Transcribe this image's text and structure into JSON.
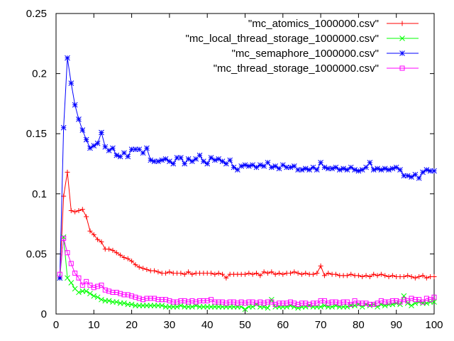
{
  "chart_data": {
    "type": "line",
    "title": "",
    "xlabel": "",
    "ylabel": "",
    "xlim": [
      0,
      100
    ],
    "ylim": [
      0,
      0.25
    ],
    "grid": false,
    "legend_position": "top-right",
    "x_ticks": [
      "0",
      "10",
      "20",
      "30",
      "40",
      "50",
      "60",
      "70",
      "80",
      "90",
      "100"
    ],
    "y_ticks": [
      "0",
      "0.05",
      "0.1",
      "0.15",
      "0.2",
      "0.25"
    ],
    "series": [
      {
        "name": "\"mc_atomics_1000000.csv\"",
        "color": "#ff0000",
        "marker": "plus",
        "values": [
          0.03,
          0.098,
          0.118,
          0.086,
          0.085,
          0.086,
          0.087,
          0.081,
          0.069,
          0.066,
          0.062,
          0.06,
          0.054,
          0.054,
          0.053,
          0.051,
          0.049,
          0.047,
          0.046,
          0.044,
          0.041,
          0.039,
          0.038,
          0.037,
          0.036,
          0.036,
          0.035,
          0.034,
          0.034,
          0.035,
          0.034,
          0.034,
          0.034,
          0.033,
          0.035,
          0.033,
          0.034,
          0.034,
          0.034,
          0.034,
          0.034,
          0.033,
          0.034,
          0.033,
          0.03,
          0.033,
          0.033,
          0.033,
          0.033,
          0.033,
          0.034,
          0.033,
          0.034,
          0.032,
          0.035,
          0.034,
          0.035,
          0.033,
          0.034,
          0.033,
          0.034,
          0.034,
          0.035,
          0.034,
          0.033,
          0.034,
          0.033,
          0.033,
          0.034,
          0.04,
          0.032,
          0.034,
          0.033,
          0.033,
          0.032,
          0.032,
          0.032,
          0.033,
          0.032,
          0.032,
          0.031,
          0.032,
          0.031,
          0.033,
          0.032,
          0.033,
          0.032,
          0.031,
          0.032,
          0.031,
          0.031,
          0.031,
          0.032,
          0.031,
          0.03,
          0.031,
          0.032,
          0.03,
          0.031,
          0.031
        ]
      },
      {
        "name": "\"mc_local_thread_storage_1000000.csv\"",
        "color": "#00ff00",
        "marker": "x",
        "values": [
          0.03,
          0.064,
          0.03,
          0.026,
          0.021,
          0.018,
          0.019,
          0.019,
          0.017,
          0.015,
          0.014,
          0.012,
          0.011,
          0.011,
          0.01,
          0.01,
          0.009,
          0.009,
          0.008,
          0.008,
          0.007,
          0.007,
          0.007,
          0.007,
          0.007,
          0.007,
          0.007,
          0.007,
          0.006,
          0.006,
          0.006,
          0.006,
          0.007,
          0.006,
          0.006,
          0.006,
          0.007,
          0.006,
          0.006,
          0.006,
          0.006,
          0.006,
          0.006,
          0.006,
          0.006,
          0.006,
          0.006,
          0.006,
          0.006,
          0.004,
          0.006,
          0.006,
          0.008,
          0.006,
          0.006,
          0.005,
          0.012,
          0.006,
          0.006,
          0.006,
          0.006,
          0.007,
          0.006,
          0.005,
          0.006,
          0.006,
          0.007,
          0.006,
          0.006,
          0.006,
          0.007,
          0.006,
          0.006,
          0.007,
          0.006,
          0.006,
          0.006,
          0.007,
          0.007,
          0.008,
          0.006,
          0.008,
          0.007,
          0.008,
          0.006,
          0.008,
          0.007,
          0.008,
          0.008,
          0.009,
          0.008,
          0.015,
          0.009,
          0.007,
          0.009,
          0.01,
          0.009,
          0.009,
          0.01,
          0.01
        ]
      },
      {
        "name": "\"mc_semaphore_1000000.csv\"",
        "color": "#0000ff",
        "marker": "star",
        "values": [
          0.03,
          0.155,
          0.213,
          0.192,
          0.174,
          0.162,
          0.153,
          0.145,
          0.138,
          0.14,
          0.142,
          0.151,
          0.139,
          0.136,
          0.138,
          0.132,
          0.131,
          0.134,
          0.131,
          0.137,
          0.137,
          0.137,
          0.134,
          0.138,
          0.128,
          0.127,
          0.127,
          0.128,
          0.129,
          0.127,
          0.125,
          0.13,
          0.13,
          0.125,
          0.129,
          0.127,
          0.129,
          0.132,
          0.127,
          0.125,
          0.13,
          0.128,
          0.129,
          0.127,
          0.125,
          0.128,
          0.122,
          0.12,
          0.123,
          0.124,
          0.123,
          0.124,
          0.122,
          0.124,
          0.123,
          0.126,
          0.122,
          0.123,
          0.121,
          0.124,
          0.122,
          0.122,
          0.123,
          0.12,
          0.12,
          0.121,
          0.12,
          0.122,
          0.12,
          0.126,
          0.122,
          0.121,
          0.121,
          0.122,
          0.12,
          0.121,
          0.12,
          0.122,
          0.12,
          0.119,
          0.12,
          0.122,
          0.126,
          0.12,
          0.121,
          0.12,
          0.121,
          0.12,
          0.121,
          0.122,
          0.12,
          0.115,
          0.115,
          0.114,
          0.116,
          0.113,
          0.118,
          0.12,
          0.119,
          0.119
        ]
      },
      {
        "name": "\"mc_thread_storage_1000000.csv\"",
        "color": "#ff00ff",
        "marker": "square",
        "values": [
          0.033,
          0.063,
          0.051,
          0.042,
          0.034,
          0.03,
          0.024,
          0.027,
          0.024,
          0.022,
          0.023,
          0.024,
          0.02,
          0.019,
          0.018,
          0.018,
          0.017,
          0.016,
          0.016,
          0.015,
          0.014,
          0.013,
          0.012,
          0.013,
          0.013,
          0.013,
          0.012,
          0.012,
          0.012,
          0.011,
          0.01,
          0.01,
          0.011,
          0.011,
          0.01,
          0.011,
          0.01,
          0.011,
          0.011,
          0.011,
          0.012,
          0.01,
          0.01,
          0.01,
          0.009,
          0.01,
          0.01,
          0.009,
          0.01,
          0.009,
          0.01,
          0.01,
          0.009,
          0.01,
          0.009,
          0.01,
          0.01,
          0.008,
          0.009,
          0.009,
          0.009,
          0.01,
          0.009,
          0.008,
          0.009,
          0.009,
          0.008,
          0.009,
          0.009,
          0.011,
          0.011,
          0.009,
          0.01,
          0.01,
          0.009,
          0.01,
          0.01,
          0.008,
          0.011,
          0.009,
          0.009,
          0.009,
          0.008,
          0.008,
          0.009,
          0.011,
          0.01,
          0.01,
          0.011,
          0.011,
          0.01,
          0.012,
          0.011,
          0.013,
          0.012,
          0.012,
          0.01,
          0.013,
          0.012,
          0.014
        ]
      }
    ]
  }
}
